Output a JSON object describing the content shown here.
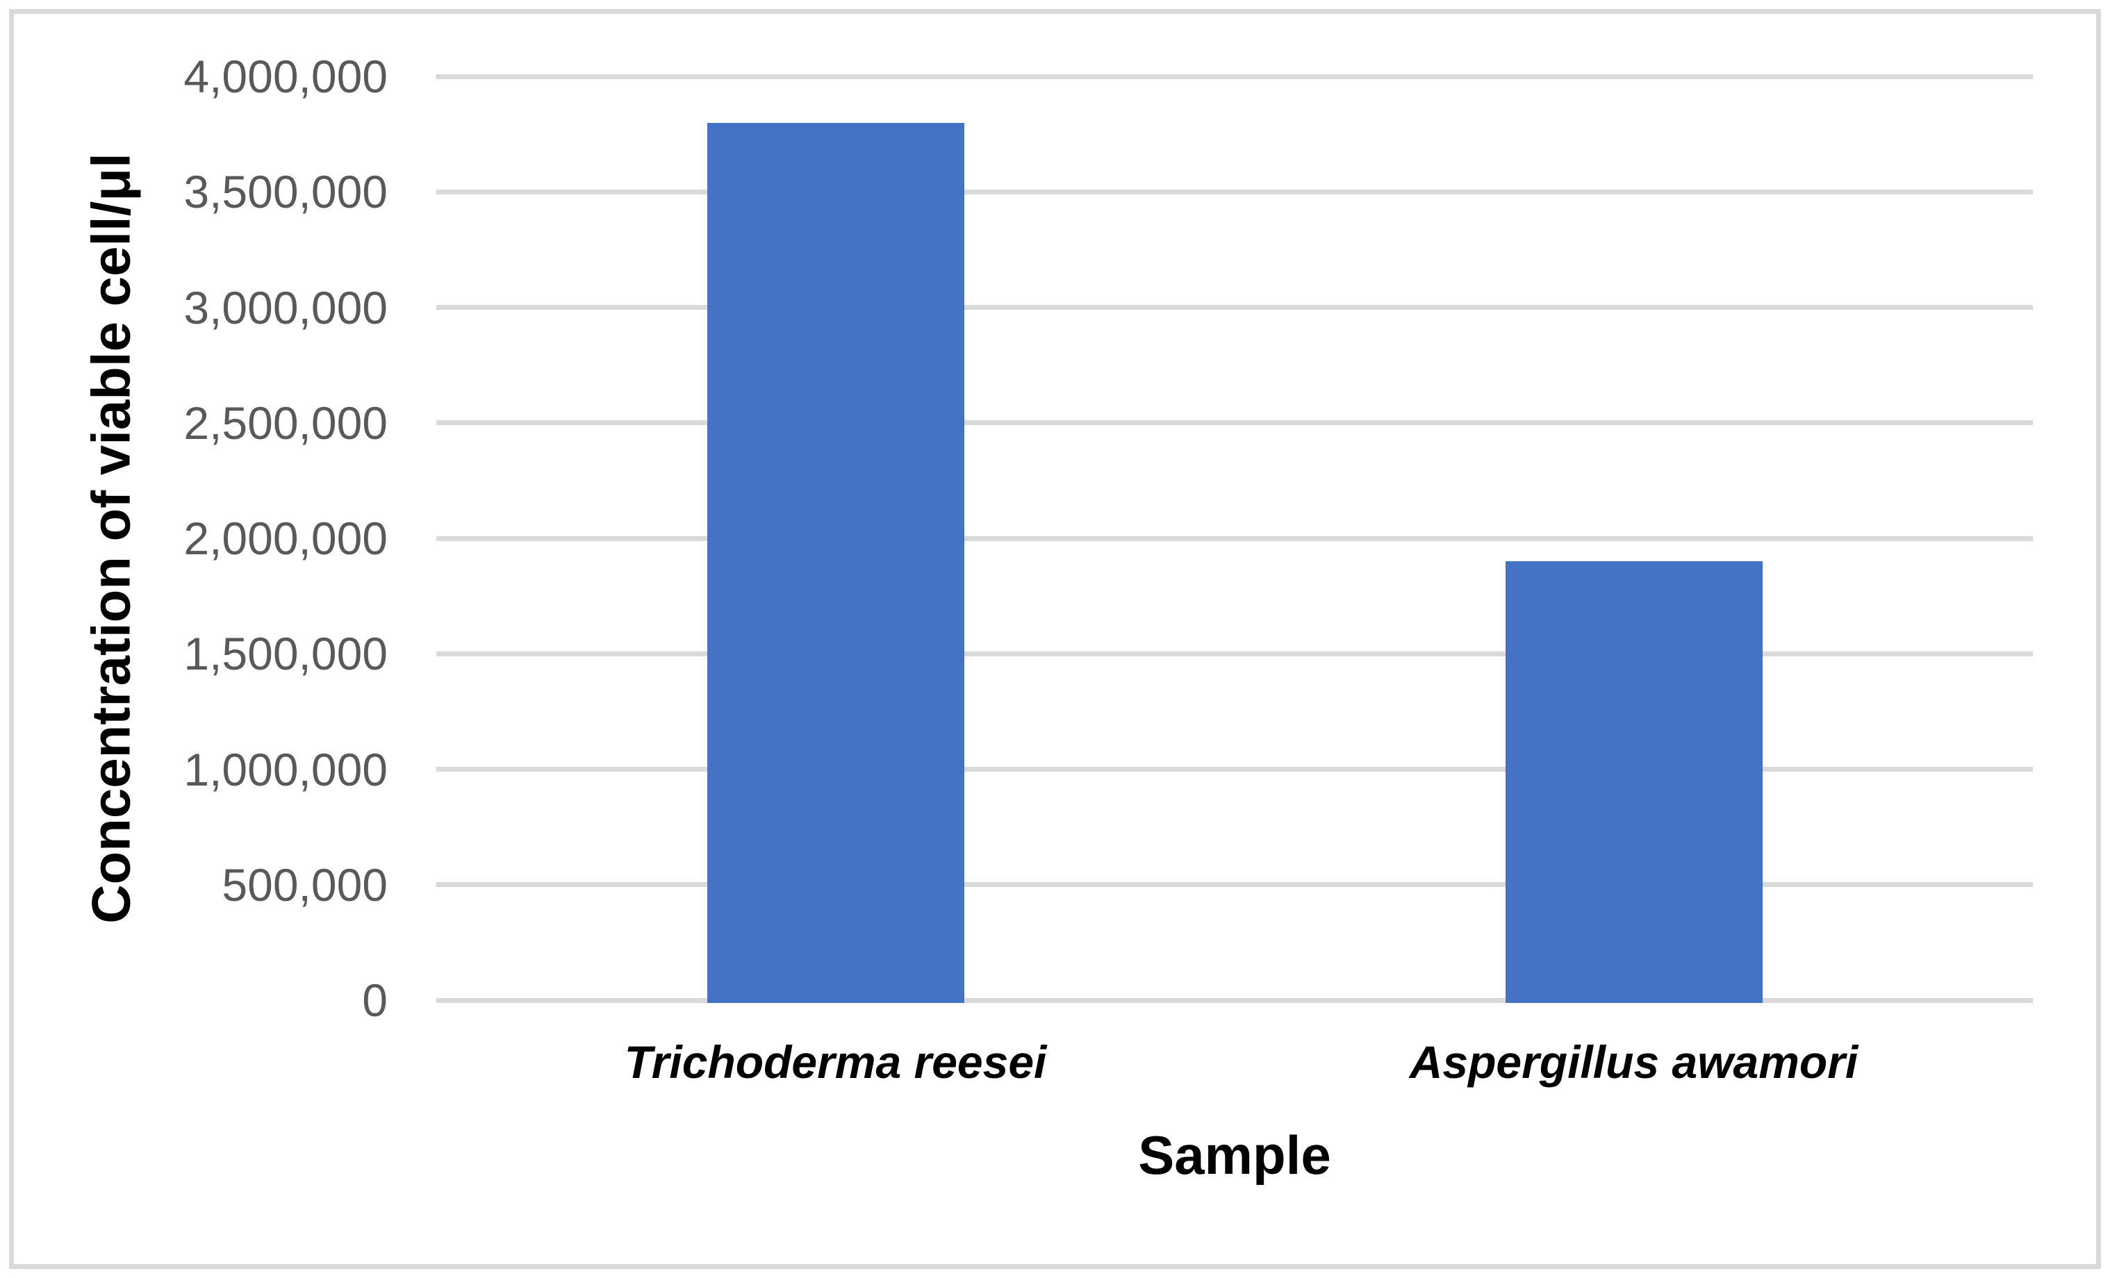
{
  "chart_data": {
    "type": "bar",
    "title": "",
    "categories": [
      "Trichoderma reesei",
      "Aspergillus awamori"
    ],
    "values": [
      3800000,
      1900000
    ],
    "xlabel": "Sample",
    "ylabel": "Concentration of viable cell/μl",
    "ylim": [
      0,
      4000000
    ],
    "ytick_step": 500000,
    "y_tick_labels": [
      "0",
      "500,000",
      "1,000,000",
      "1,500,000",
      "2,000,000",
      "2,500,000",
      "3,000,000",
      "3,500,000",
      "4,000,000"
    ],
    "grid": "horizontal",
    "legend_position": "none",
    "styles": {
      "bar_color": "#4472c4",
      "gridline_color": "#d9d9d9",
      "frame_border_color": "#d9d9d9",
      "tick_label_color": "#595959",
      "axis_title_color": "#000000",
      "category_label_style": "bold-italic"
    }
  }
}
